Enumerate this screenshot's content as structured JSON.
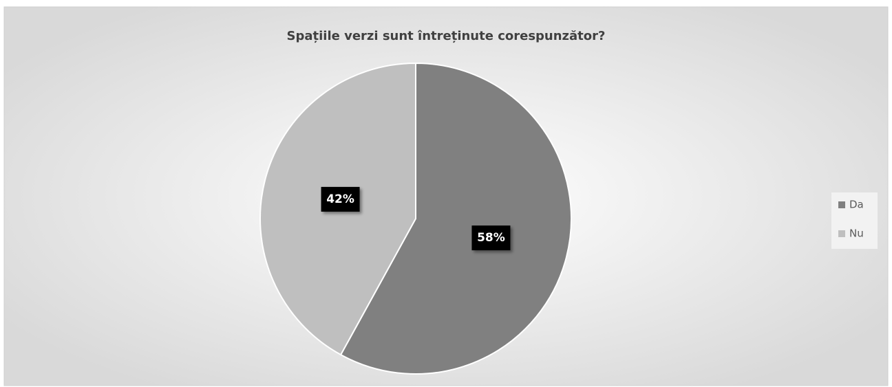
{
  "chart_data": {
    "type": "pie",
    "title": "Spațiile verzi sunt întreținute corespunzător?",
    "categories": [
      "Da",
      "Nu"
    ],
    "values": [
      58,
      42
    ],
    "value_labels": [
      "58%",
      "42%"
    ],
    "colors": [
      "#808080",
      "#bfbfbf"
    ],
    "legend": "right"
  }
}
